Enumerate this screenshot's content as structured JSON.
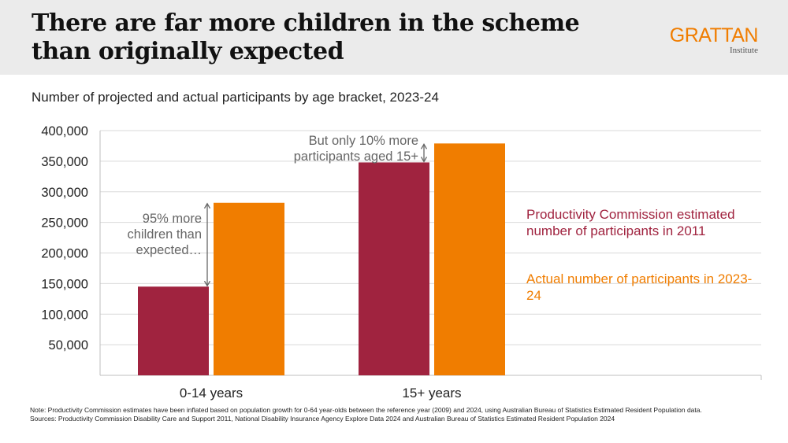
{
  "header": {
    "title": "There are far more children in the scheme than originally expected",
    "logo_main": "GRATTAN",
    "logo_sub": "Institute"
  },
  "subtitle": "Number of projected and actual participants by age bracket, 2023-24",
  "colors": {
    "projected": "#a0233f",
    "actual": "#f07d00",
    "annotation": "#666666",
    "grid": "#d9d9d9"
  },
  "chart_data": {
    "type": "bar",
    "categories": [
      "0-14 years",
      "15+ years"
    ],
    "series": [
      {
        "name": "Productivity Commission estimated number of participants in 2011",
        "values": [
          145000,
          348000
        ]
      },
      {
        "name": "Actual number of participants in 2023-24",
        "values": [
          282000,
          379000
        ]
      }
    ],
    "ylim": [
      0,
      400000
    ],
    "yticks": [
      50000,
      100000,
      150000,
      200000,
      250000,
      300000,
      350000,
      400000
    ],
    "ytick_labels": [
      "50,000",
      "100,000",
      "150,000",
      "200,000",
      "250,000",
      "300,000",
      "350,000",
      "400,000"
    ],
    "grid": true,
    "legend": "right",
    "annotations": [
      {
        "category_index": 0,
        "lines": [
          "95% more",
          "children than",
          "expected…"
        ]
      },
      {
        "category_index": 1,
        "lines": [
          "But only 10% more",
          "participants aged 15+"
        ]
      }
    ]
  },
  "legend": {
    "projected": "Productivity Commission estimated number of participants in 2011",
    "actual": "Actual number of participants in 2023-24"
  },
  "notes": {
    "note": "Note: Productivity Commission estimates have been inflated based on population growth for 0-64 year-olds between the reference year (2009) and 2024, using Australian Bureau of Statistics Estimated Resident Population data.",
    "sources": "Sources: Productivity Commission Disability Care and Support 2011, National Disability Insurance Agency Explore Data 2024 and Australian Bureau of Statistics Estimated Resident Population 2024"
  }
}
